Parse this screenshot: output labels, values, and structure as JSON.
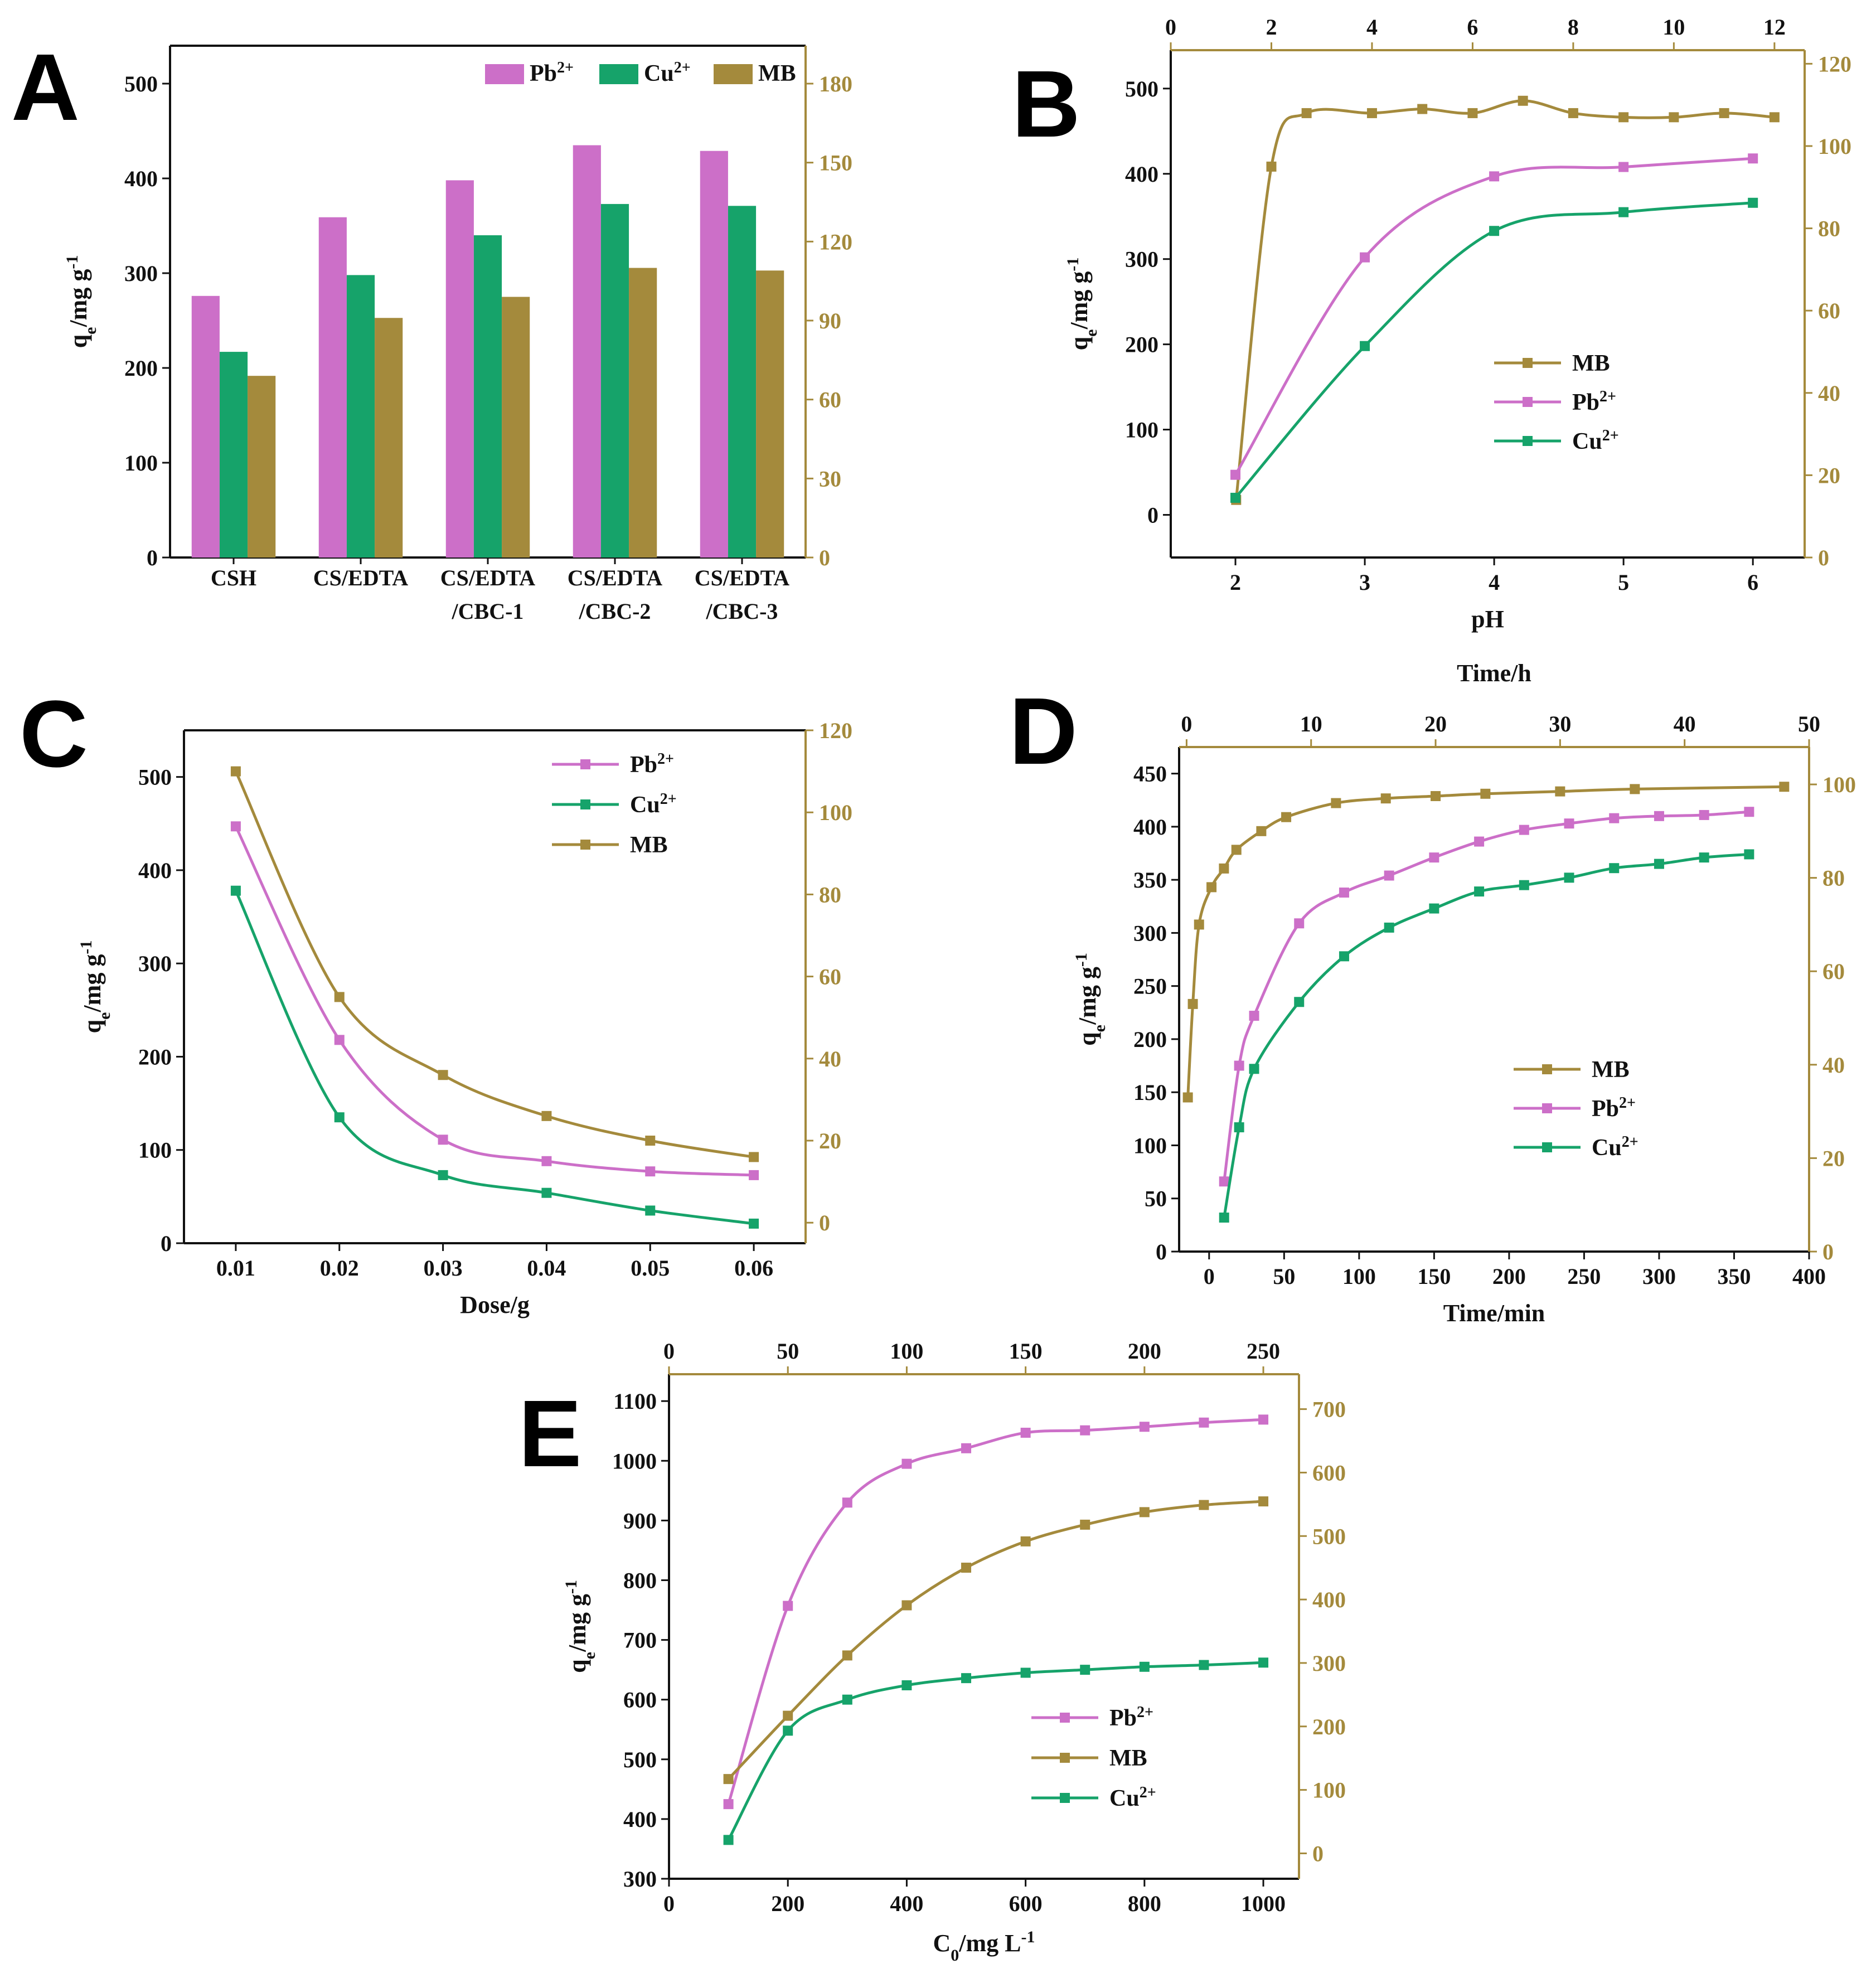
{
  "colors": {
    "pb": "#cc6fc8",
    "cu": "#16a36a",
    "mb": "#a48a3c",
    "frame": "#111111",
    "secondary_frame": "#a48a3c"
  },
  "chart_data": [
    {
      "id": "A",
      "letter": "A",
      "type": "bar",
      "categories": [
        "CSH",
        "CS/EDTA",
        "CS/EDTA\n/CBC-1",
        "CS/EDTA\n/CBC-2",
        "CS/EDTA\n/CBC-3"
      ],
      "series": [
        {
          "name": "Pb2+",
          "label": "Pb",
          "sup": "2+",
          "color_key": "pb",
          "axis": "left",
          "values": [
            276,
            359,
            398,
            435,
            429
          ]
        },
        {
          "name": "Cu2+",
          "label": "Cu",
          "sup": "2+",
          "color_key": "cu",
          "axis": "left",
          "values": [
            217,
            298,
            340,
            373,
            371
          ]
        },
        {
          "name": "MB",
          "label": "MB",
          "sup": "",
          "color_key": "mb",
          "axis": "right",
          "values": [
            69,
            91,
            99,
            110,
            109
          ]
        }
      ],
      "ylabel": "qe/mg g-1",
      "ylim": [
        0,
        540
      ],
      "yticks": [
        0,
        100,
        200,
        300,
        400,
        500
      ],
      "y2lim": [
        0,
        194.4
      ],
      "y2ticks": [
        0,
        30,
        60,
        90,
        120,
        150,
        180
      ],
      "legend_position": "top-right"
    },
    {
      "id": "B",
      "letter": "B",
      "type": "line",
      "xlabel": "pH",
      "xlim": [
        1.5,
        6.4
      ],
      "xticks": [
        2,
        3,
        4,
        5,
        6
      ],
      "x2label": "",
      "x2lim": [
        0,
        12.6
      ],
      "x2ticks": [
        0,
        2,
        4,
        6,
        8,
        10,
        12
      ],
      "ylabel": "qe/mg g-1",
      "ylim": [
        -50,
        545
      ],
      "yticks": [
        0,
        100,
        200,
        300,
        400,
        500
      ],
      "y2lim": [
        0,
        123.3
      ],
      "y2ticks": [
        0,
        20,
        40,
        60,
        80,
        100,
        120
      ],
      "series": [
        {
          "name": "MB",
          "label": "MB",
          "sup": "",
          "color_key": "mb",
          "x_axis": "top",
          "y_axis": "right",
          "x": [
            1.3,
            2.0,
            2.7,
            4.0,
            5.0,
            6.0,
            7.0,
            8.0,
            9.0,
            10.0,
            11.0,
            12.0
          ],
          "y": [
            14,
            95,
            108,
            108,
            109,
            108,
            111,
            108,
            107,
            107,
            108,
            107
          ]
        },
        {
          "name": "Pb2+",
          "label": "Pb",
          "sup": "2+",
          "color_key": "pb",
          "x_axis": "bottom",
          "y_axis": "left",
          "x": [
            2,
            3,
            4,
            5,
            6
          ],
          "y": [
            47,
            302,
            397,
            408,
            418
          ]
        },
        {
          "name": "Cu2+",
          "label": "Cu",
          "sup": "2+",
          "color_key": "cu",
          "x_axis": "bottom",
          "y_axis": "left",
          "x": [
            2,
            3,
            4,
            5,
            6
          ],
          "y": [
            20,
            198,
            333,
            355,
            366
          ]
        }
      ],
      "legend_position": "center-right"
    },
    {
      "id": "C",
      "letter": "C",
      "type": "line",
      "xlabel": "Dose/g",
      "xlim": [
        0.005,
        0.065
      ],
      "xticks": [
        0.01,
        0.02,
        0.03,
        0.04,
        0.05,
        0.06
      ],
      "ylabel": "qe/mg g-1",
      "ylim": [
        0,
        550
      ],
      "yticks": [
        0,
        100,
        200,
        300,
        400,
        500
      ],
      "y2lim": [
        -5,
        120
      ],
      "y2ticks": [
        0,
        20,
        40,
        60,
        80,
        100,
        120
      ],
      "series": [
        {
          "name": "Pb2+",
          "label": "Pb",
          "sup": "2+",
          "color_key": "pb",
          "y_axis": "left",
          "x": [
            0.01,
            0.02,
            0.03,
            0.04,
            0.05,
            0.06
          ],
          "y": [
            447,
            218,
            111,
            88,
            77,
            73
          ]
        },
        {
          "name": "Cu2+",
          "label": "Cu",
          "sup": "2+",
          "color_key": "cu",
          "y_axis": "left",
          "x": [
            0.01,
            0.02,
            0.03,
            0.04,
            0.05,
            0.06
          ],
          "y": [
            378,
            135,
            73,
            54,
            35,
            21
          ]
        },
        {
          "name": "MB",
          "label": "MB",
          "sup": "",
          "color_key": "mb",
          "y_axis": "right",
          "x": [
            0.01,
            0.02,
            0.03,
            0.04,
            0.05,
            0.06
          ],
          "y": [
            110,
            55,
            36,
            26,
            20,
            16
          ]
        }
      ],
      "legend_position": "top-right"
    },
    {
      "id": "D",
      "letter": "D",
      "type": "line",
      "xlabel": "Time/min",
      "xlim": [
        -20,
        400
      ],
      "xticks": [
        0,
        50,
        100,
        150,
        200,
        250,
        300,
        350,
        400
      ],
      "x2label": "Time/h",
      "x2lim": [
        -0.6,
        50
      ],
      "x2ticks": [
        0,
        10,
        20,
        30,
        40,
        50
      ],
      "ylabel": "qe/mg g-1",
      "ylim": [
        0,
        475
      ],
      "yticks": [
        0,
        50,
        100,
        150,
        200,
        250,
        300,
        350,
        400,
        450
      ],
      "y2lim": [
        0,
        108
      ],
      "y2ticks": [
        0,
        20,
        40,
        60,
        80,
        100
      ],
      "series": [
        {
          "name": "MB",
          "label": "MB",
          "sup": "",
          "color_key": "mb",
          "x_axis": "top",
          "y_axis": "right",
          "x": [
            0.1,
            0.5,
            1,
            2,
            3,
            4,
            6,
            8,
            12,
            16,
            20,
            24,
            30,
            36,
            48
          ],
          "y": [
            33,
            53,
            70,
            78,
            82,
            86,
            90,
            93,
            96,
            97,
            97.5,
            98,
            98.5,
            99,
            99.5
          ]
        },
        {
          "name": "Pb2+",
          "label": "Pb",
          "sup": "2+",
          "color_key": "pb",
          "x_axis": "bottom",
          "y_axis": "left",
          "x": [
            10,
            20,
            30,
            60,
            90,
            120,
            150,
            180,
            210,
            240,
            270,
            300,
            330,
            360
          ],
          "y": [
            66,
            175,
            222,
            309,
            338,
            354,
            371,
            386,
            397,
            403,
            408,
            410,
            411,
            414
          ]
        },
        {
          "name": "Cu2+",
          "label": "Cu",
          "sup": "2+",
          "color_key": "cu",
          "x_axis": "bottom",
          "y_axis": "left",
          "x": [
            10,
            20,
            30,
            60,
            90,
            120,
            150,
            180,
            210,
            240,
            270,
            300,
            330,
            360
          ],
          "y": [
            32,
            117,
            172,
            235,
            278,
            305,
            323,
            339,
            345,
            352,
            361,
            365,
            371,
            374
          ]
        }
      ],
      "legend_position": "center-right"
    },
    {
      "id": "E",
      "letter": "E",
      "type": "line",
      "xlabel": "C0/mg L-1",
      "xlim": [
        0,
        1060
      ],
      "xticks": [
        0,
        200,
        400,
        600,
        800,
        1000
      ],
      "x2label": "",
      "x2lim": [
        0,
        265
      ],
      "x2ticks": [
        0,
        50,
        100,
        150,
        200,
        250
      ],
      "ylabel": "qe/mg g-1",
      "ylim": [
        300,
        1145
      ],
      "yticks": [
        300,
        400,
        500,
        600,
        700,
        800,
        900,
        1000,
        1100
      ],
      "y2lim": [
        -40,
        755
      ],
      "y2ticks": [
        0,
        100,
        200,
        300,
        400,
        500,
        600,
        700
      ],
      "series": [
        {
          "name": "Pb2+",
          "label": "Pb",
          "sup": "2+",
          "color_key": "pb",
          "y_axis": "left",
          "x": [
            100,
            200,
            300,
            400,
            500,
            600,
            700,
            800,
            900,
            1000
          ],
          "y": [
            425,
            757,
            930,
            995,
            1021,
            1047,
            1051,
            1057,
            1064,
            1069
          ]
        },
        {
          "name": "MB",
          "label": "MB",
          "sup": "",
          "color_key": "mb",
          "y_axis": "left",
          "x": [
            100,
            200,
            300,
            400,
            500,
            600,
            700,
            800,
            900,
            1000
          ],
          "y": [
            467,
            573,
            674,
            758,
            821,
            865,
            893,
            914,
            926,
            932
          ]
        },
        {
          "name": "Cu2+",
          "label": "Cu",
          "sup": "2+",
          "color_key": "cu",
          "y_axis": "left",
          "x": [
            100,
            200,
            300,
            400,
            500,
            600,
            700,
            800,
            900,
            1000
          ],
          "y": [
            365,
            548,
            600,
            624,
            636,
            645,
            650,
            655,
            658,
            662
          ]
        }
      ],
      "legend_position": "bottom-right"
    }
  ]
}
